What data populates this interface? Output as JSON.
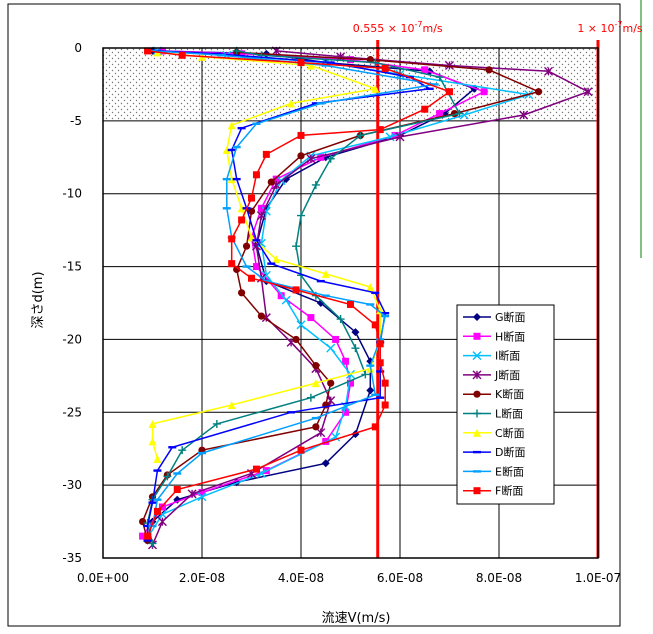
{
  "chart_data": {
    "type": "line",
    "xlabel": "流速V(m/s)",
    "ylabel": "深さd(m)",
    "xlim": [
      0,
      1e-07
    ],
    "ylim": [
      -35,
      0
    ],
    "x_ticks": [
      "0.0E+00",
      "2.0E-08",
      "4.0E-08",
      "6.0E-08",
      "8.0E-08",
      "1.0E-07"
    ],
    "y_ticks": [
      "0",
      "-5",
      "-10",
      "-15",
      "-20",
      "-25",
      "-30",
      "-35"
    ],
    "grid": true,
    "shaded_band": {
      "y_from": 0,
      "y_to": -5
    },
    "reference_lines": [
      {
        "x": 5.55e-08,
        "label": "0.555 × 10^-7 m/s",
        "label_parts": [
          "0.555 × 10",
          "-7",
          "m/s"
        ],
        "color": "#ff0000"
      },
      {
        "x": 1e-07,
        "label": "1 × 10^-7 m/s",
        "label_parts": [
          "1 × 10",
          "-7",
          "m/s"
        ],
        "color": "#ff0000"
      }
    ],
    "legend_position": "right",
    "series": [
      {
        "name": "G断面",
        "color": "#000080",
        "marker": "diamond",
        "points": [
          [
            1e-08,
            -0.2
          ],
          [
            3.3e-08,
            -0.4
          ],
          [
            4.5e-08,
            -1.0
          ],
          [
            6.6e-08,
            -1.6
          ],
          [
            7.5e-08,
            -2.8
          ],
          [
            6.9e-08,
            -4.5
          ],
          [
            6e-08,
            -6.0
          ],
          [
            4.5e-08,
            -7.5
          ],
          [
            3.7e-08,
            -9.0
          ],
          [
            3.3e-08,
            -11.0
          ],
          [
            3.1e-08,
            -13.5
          ],
          [
            3.3e-08,
            -16.0
          ],
          [
            4.4e-08,
            -17.5
          ],
          [
            5.1e-08,
            -19.5
          ],
          [
            5.4e-08,
            -21.5
          ],
          [
            5.4e-08,
            -23.5
          ],
          [
            5.1e-08,
            -26.5
          ],
          [
            4.5e-08,
            -28.5
          ],
          [
            2.7e-08,
            -29.8
          ],
          [
            1.5e-08,
            -31.0
          ],
          [
            1e-08,
            -32.5
          ],
          [
            9e-09,
            -33.8
          ]
        ]
      },
      {
        "name": "H断面",
        "color": "#ff00ff",
        "marker": "square",
        "points": [
          [
            1.2e-08,
            -0.2
          ],
          [
            2.8e-08,
            -0.4
          ],
          [
            5e-08,
            -0.8
          ],
          [
            6.5e-08,
            -1.5
          ],
          [
            7.7e-08,
            -3.0
          ],
          [
            6.8e-08,
            -4.5
          ],
          [
            5.9e-08,
            -6.0
          ],
          [
            4.4e-08,
            -7.5
          ],
          [
            3.5e-08,
            -9.0
          ],
          [
            3.2e-08,
            -11.0
          ],
          [
            3e-08,
            -13.0
          ],
          [
            3.1e-08,
            -15.0
          ],
          [
            3.6e-08,
            -17.0
          ],
          [
            4.2e-08,
            -18.5
          ],
          [
            4.7e-08,
            -20.0
          ],
          [
            4.9e-08,
            -21.5
          ],
          [
            5e-08,
            -23.0
          ],
          [
            4.9e-08,
            -25.0
          ],
          [
            4.5e-08,
            -27.0
          ],
          [
            3.3e-08,
            -29.0
          ],
          [
            2e-08,
            -30.5
          ],
          [
            1.2e-08,
            -31.5
          ],
          [
            8e-09,
            -33.5
          ]
        ]
      },
      {
        "name": "I断面",
        "color": "#00c0ff",
        "marker": "x",
        "points": [
          [
            1.1e-08,
            -0.2
          ],
          [
            2.5e-08,
            -0.5
          ],
          [
            4.5e-08,
            -1.0
          ],
          [
            6e-08,
            -1.8
          ],
          [
            8.6e-08,
            -3.2
          ],
          [
            7.3e-08,
            -4.6
          ],
          [
            5.8e-08,
            -6.1
          ],
          [
            4.2e-08,
            -7.4
          ],
          [
            3.6e-08,
            -9.1
          ],
          [
            3.3e-08,
            -11.2
          ],
          [
            3.2e-08,
            -13.4
          ],
          [
            3.3e-08,
            -15.6
          ],
          [
            3.7e-08,
            -17.3
          ],
          [
            4e-08,
            -19.0
          ],
          [
            4.6e-08,
            -20.6
          ],
          [
            5e-08,
            -22.4
          ],
          [
            4.9e-08,
            -24.6
          ],
          [
            4.7e-08,
            -26.7
          ],
          [
            3.2e-08,
            -29.2
          ],
          [
            2e-08,
            -30.8
          ],
          [
            1.2e-08,
            -32.0
          ],
          [
            9e-09,
            -33.6
          ]
        ]
      },
      {
        "name": "J断面",
        "color": "#800080",
        "marker": "asterisk",
        "points": [
          [
            3.5e-08,
            -0.2
          ],
          [
            4.8e-08,
            -0.6
          ],
          [
            7e-08,
            -1.2
          ],
          [
            9e-08,
            -1.6
          ],
          [
            9.8e-08,
            -3.0
          ],
          [
            8.5e-08,
            -4.6
          ],
          [
            6e-08,
            -6.1
          ],
          [
            4.2e-08,
            -7.6
          ],
          [
            3.5e-08,
            -9.4
          ],
          [
            3.2e-08,
            -11.5
          ],
          [
            3.1e-08,
            -13.6
          ],
          [
            3.2e-08,
            -15.8
          ],
          [
            3.3e-08,
            -18.5
          ],
          [
            3.8e-08,
            -20.2
          ],
          [
            4.3e-08,
            -22.0
          ],
          [
            4.6e-08,
            -24.2
          ],
          [
            4.4e-08,
            -26.4
          ],
          [
            3e-08,
            -29.2
          ],
          [
            1.8e-08,
            -30.6
          ],
          [
            1.2e-08,
            -32.5
          ],
          [
            1e-08,
            -34.1
          ]
        ]
      },
      {
        "name": "K断面",
        "color": "#800000",
        "marker": "circle",
        "points": [
          [
            2.7e-08,
            -0.3
          ],
          [
            5.4e-08,
            -0.8
          ],
          [
            7.8e-08,
            -1.5
          ],
          [
            8.8e-08,
            -3.0
          ],
          [
            7.1e-08,
            -4.5
          ],
          [
            5.2e-08,
            -6.0
          ],
          [
            4e-08,
            -7.4
          ],
          [
            3.4e-08,
            -9.2
          ],
          [
            3e-08,
            -11.2
          ],
          [
            2.9e-08,
            -13.6
          ],
          [
            2.7e-08,
            -15.2
          ],
          [
            2.8e-08,
            -16.8
          ],
          [
            3.2e-08,
            -18.4
          ],
          [
            3.9e-08,
            -20.0
          ],
          [
            4.3e-08,
            -21.8
          ],
          [
            4.6e-08,
            -23.0
          ],
          [
            4.5e-08,
            -24.5
          ],
          [
            4.3e-08,
            -26.0
          ],
          [
            2e-08,
            -27.6
          ],
          [
            1.3e-08,
            -29.3
          ],
          [
            1e-08,
            -30.8
          ],
          [
            8e-09,
            -32.5
          ],
          [
            9e-09,
            -33.8
          ]
        ]
      },
      {
        "name": "L断面",
        "color": "#008080",
        "marker": "plus",
        "points": [
          [
            2.7e-08,
            -0.2
          ],
          [
            3.2e-08,
            -0.5
          ],
          [
            5.5e-08,
            -1.0
          ],
          [
            6.8e-08,
            -2.0
          ],
          [
            7.2e-08,
            -4.5
          ],
          [
            5.2e-08,
            -6.0
          ],
          [
            4.6e-08,
            -7.6
          ],
          [
            4.3e-08,
            -9.4
          ],
          [
            4e-08,
            -11.5
          ],
          [
            3.9e-08,
            -13.6
          ],
          [
            4e-08,
            -15.6
          ],
          [
            4.3e-08,
            -17.0
          ],
          [
            4.8e-08,
            -18.6
          ],
          [
            5.1e-08,
            -20.6
          ],
          [
            5.3e-08,
            -22.4
          ],
          [
            4.2e-08,
            -24.0
          ],
          [
            2.3e-08,
            -25.8
          ],
          [
            1.6e-08,
            -27.6
          ],
          [
            1.3e-08,
            -29.4
          ],
          [
            1e-08,
            -31.0
          ],
          [
            9e-09,
            -32.6
          ],
          [
            1e-08,
            -34.0
          ]
        ]
      },
      {
        "name": "C断面",
        "color": "#ffff00",
        "marker": "triangle",
        "points": [
          [
            1.1e-08,
            -0.3
          ],
          [
            2e-08,
            -0.6
          ],
          [
            4.2e-08,
            -1.2
          ],
          [
            5.5e-08,
            -2.8
          ],
          [
            3.8e-08,
            -3.8
          ],
          [
            2.6e-08,
            -5.3
          ],
          [
            2.5e-08,
            -7.0
          ],
          [
            2.6e-08,
            -9.0
          ],
          [
            2.8e-08,
            -11.0
          ],
          [
            3e-08,
            -13.0
          ],
          [
            3.5e-08,
            -14.5
          ],
          [
            4.5e-08,
            -15.5
          ],
          [
            5.4e-08,
            -16.4
          ],
          [
            5.6e-08,
            -18.0
          ],
          [
            5.6e-08,
            -20.0
          ],
          [
            5.4e-08,
            -22.0
          ],
          [
            4.3e-08,
            -23.0
          ],
          [
            2.6e-08,
            -24.5
          ],
          [
            1e-08,
            -25.8
          ],
          [
            1e-08,
            -27.0
          ],
          [
            1.1e-08,
            -28.2
          ]
        ]
      },
      {
        "name": "D断面",
        "color": "#0000ff",
        "marker": "dash",
        "points": [
          [
            1.1e-08,
            -0.2
          ],
          [
            2.3e-08,
            -0.4
          ],
          [
            4.6e-08,
            -1.0
          ],
          [
            6.2e-08,
            -2.0
          ],
          [
            6.6e-08,
            -2.8
          ],
          [
            4.3e-08,
            -3.8
          ],
          [
            2.8e-08,
            -5.5
          ],
          [
            2.6e-08,
            -7.0
          ],
          [
            2.7e-08,
            -9.0
          ],
          [
            2.9e-08,
            -11.0
          ],
          [
            3.1e-08,
            -13.2
          ],
          [
            3.4e-08,
            -14.8
          ],
          [
            4.4e-08,
            -16.0
          ],
          [
            5.5e-08,
            -16.8
          ],
          [
            5.7e-08,
            -18.2
          ],
          [
            5.6e-08,
            -20.2
          ],
          [
            5.6e-08,
            -22.2
          ],
          [
            5.6e-08,
            -24.0
          ],
          [
            3.8e-08,
            -25.0
          ],
          [
            1.4e-08,
            -27.4
          ],
          [
            1.1e-08,
            -29.0
          ],
          [
            1e-08,
            -31.2
          ],
          [
            9e-09,
            -32.8
          ],
          [
            9e-09,
            -33.8
          ]
        ]
      },
      {
        "name": "E断面",
        "color": "#00a0ff",
        "marker": "dash",
        "points": [
          [
            1e-08,
            -0.2
          ],
          [
            2.4e-08,
            -0.5
          ],
          [
            4.5e-08,
            -1.2
          ],
          [
            6.7e-08,
            -2.5
          ],
          [
            4.4e-08,
            -3.8
          ],
          [
            3.1e-08,
            -5.2
          ],
          [
            2.7e-08,
            -6.8
          ],
          [
            2.5e-08,
            -9.0
          ],
          [
            2.5e-08,
            -11.0
          ],
          [
            2.6e-08,
            -13.0
          ],
          [
            2.9e-08,
            -15.0
          ],
          [
            3.3e-08,
            -16.0
          ],
          [
            4.5e-08,
            -17.0
          ],
          [
            5.4e-08,
            -17.6
          ],
          [
            5.7e-08,
            -18.4
          ],
          [
            5.6e-08,
            -20.0
          ],
          [
            5.4e-08,
            -21.8
          ],
          [
            5.5e-08,
            -23.8
          ],
          [
            4.3e-08,
            -25.4
          ],
          [
            2e-08,
            -27.8
          ],
          [
            1.5e-08,
            -29.2
          ],
          [
            1.1e-08,
            -31.0
          ],
          [
            1e-08,
            -32.8
          ]
        ]
      },
      {
        "name": "F断面",
        "color": "#ff0000",
        "marker": "square",
        "points": [
          [
            9e-09,
            -0.2
          ],
          [
            1.6e-08,
            -0.5
          ],
          [
            4e-08,
            -1.0
          ],
          [
            5.7e-08,
            -1.4
          ],
          [
            7e-08,
            -3.0
          ],
          [
            6.5e-08,
            -4.2
          ],
          [
            5.6e-08,
            -5.6
          ],
          [
            4e-08,
            -6.0
          ],
          [
            3.3e-08,
            -7.3
          ],
          [
            3.1e-08,
            -8.7
          ],
          [
            3e-08,
            -10.3
          ],
          [
            2.8e-08,
            -11.8
          ],
          [
            2.6e-08,
            -13.1
          ],
          [
            2.6e-08,
            -14.8
          ],
          [
            3e-08,
            -15.8
          ],
          [
            3.9e-08,
            -16.6
          ],
          [
            5e-08,
            -17.6
          ],
          [
            5.5e-08,
            -19.0
          ],
          [
            5.6e-08,
            -20.3
          ],
          [
            5.6e-08,
            -21.6
          ],
          [
            5.7e-08,
            -23.0
          ],
          [
            5.7e-08,
            -24.5
          ],
          [
            5.5e-08,
            -26.0
          ],
          [
            4e-08,
            -27.6
          ],
          [
            3.1e-08,
            -28.9
          ],
          [
            1.5e-08,
            -30.3
          ],
          [
            1.1e-08,
            -31.8
          ],
          [
            9e-09,
            -33.5
          ]
        ]
      }
    ]
  }
}
